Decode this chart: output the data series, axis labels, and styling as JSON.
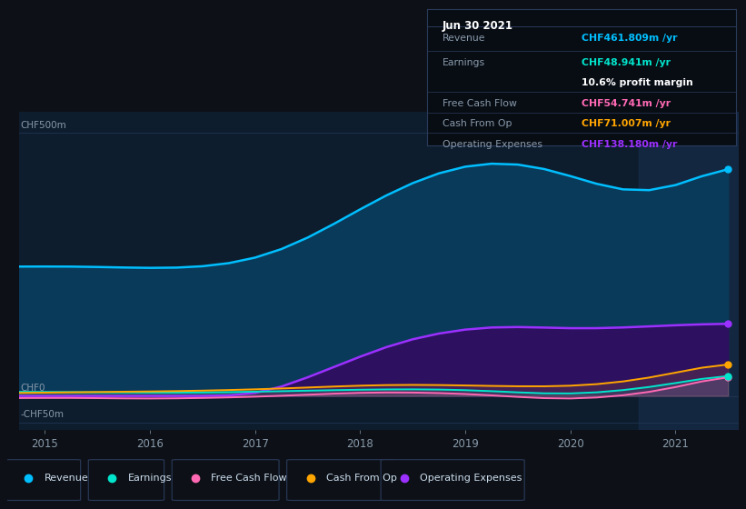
{
  "bg_color": "#0d1117",
  "plot_bg_color": "#0d1d2e",
  "grid_color": "#253a5a",
  "revenue_color": "#00bfff",
  "earnings_color": "#00e5cc",
  "fcf_color": "#ff69b4",
  "cashfromop_color": "#ffa500",
  "opex_color": "#9b30ff",
  "revenue_fill": "#0a3a5a",
  "opex_fill": "#2d1060",
  "years": [
    2014.75,
    2015.0,
    2015.25,
    2015.5,
    2015.75,
    2016.0,
    2016.25,
    2016.5,
    2016.75,
    2017.0,
    2017.25,
    2017.5,
    2017.75,
    2018.0,
    2018.25,
    2018.5,
    2018.75,
    2019.0,
    2019.25,
    2019.5,
    2019.75,
    2020.0,
    2020.25,
    2020.5,
    2020.75,
    2021.0,
    2021.25,
    2021.5
  ],
  "revenue": [
    245,
    247,
    247,
    246,
    244,
    242,
    242,
    243,
    248,
    255,
    272,
    295,
    325,
    358,
    385,
    410,
    430,
    445,
    450,
    448,
    440,
    420,
    400,
    380,
    375,
    385,
    415,
    462
  ],
  "earnings": [
    8,
    8,
    7,
    7,
    7,
    6,
    6,
    6,
    7,
    8,
    9,
    10,
    11,
    12,
    13,
    13,
    13,
    12,
    10,
    7,
    3,
    0,
    5,
    10,
    15,
    22,
    32,
    49
  ],
  "fcf": [
    -5,
    -3,
    -3,
    -4,
    -5,
    -6,
    -5,
    -4,
    -3,
    -2,
    0,
    2,
    5,
    7,
    8,
    7,
    6,
    5,
    2,
    -2,
    -6,
    -10,
    -5,
    0,
    5,
    12,
    22,
    55
  ],
  "cashfromop": [
    5,
    6,
    7,
    8,
    8,
    8,
    9,
    10,
    11,
    12,
    14,
    16,
    18,
    20,
    22,
    22,
    21,
    20,
    19,
    18,
    17,
    17,
    20,
    25,
    32,
    42,
    56,
    71
  ],
  "opex": [
    0,
    0,
    0,
    0,
    0,
    0,
    0,
    0,
    0,
    0,
    15,
    35,
    55,
    75,
    95,
    110,
    120,
    128,
    132,
    132,
    130,
    128,
    128,
    130,
    132,
    135,
    136,
    138
  ],
  "ylim_min": -65,
  "ylim_max": 540,
  "xlim_min": 2014.75,
  "xlim_max": 2021.6,
  "ytick_positions": [
    -50,
    0,
    500
  ],
  "ytick_labels": [
    "-CHF50m",
    "CHF0",
    "CHF500m"
  ],
  "xticks": [
    2015,
    2016,
    2017,
    2018,
    2019,
    2020,
    2021
  ],
  "highlight_x_start": 2020.65,
  "legend_items": [
    "Revenue",
    "Earnings",
    "Free Cash Flow",
    "Cash From Op",
    "Operating Expenses"
  ],
  "legend_colors": [
    "#00bfff",
    "#00e5cc",
    "#ff69b4",
    "#ffa500",
    "#9b30ff"
  ],
  "tooltip": {
    "date": "Jun 30 2021",
    "revenue_val": "CHF461.809m",
    "earnings_val": "CHF48.941m",
    "margin": "10.6%",
    "fcf_val": "CHF54.741m",
    "cashfromop_val": "CHF71.007m",
    "opex_val": "CHF138.180m"
  },
  "revenue_color_tooltip": "#00bfff",
  "earnings_color_tooltip": "#00e5cc",
  "fcf_color_tooltip": "#ff69b4",
  "cashfromop_color_tooltip": "#ffa500",
  "opex_color_tooltip": "#9b30ff",
  "tooltip_bg": "#080d14",
  "tooltip_border": "#2a3a5a",
  "label_color": "#8899aa",
  "white_color": "#ffffff"
}
